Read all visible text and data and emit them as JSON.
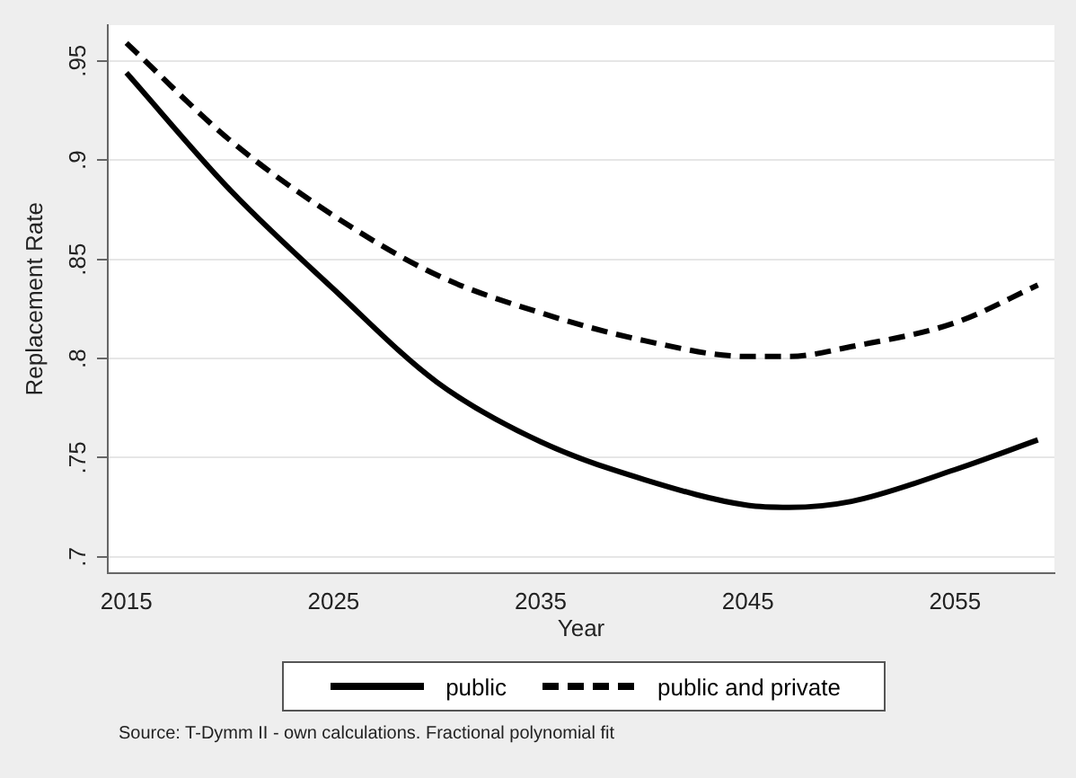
{
  "chart_data": {
    "type": "line",
    "xlabel": "Year",
    "ylabel": "Replacement Rate",
    "x": [
      2015,
      2020,
      2025,
      2030,
      2035,
      2040,
      2045,
      2047,
      2050,
      2055,
      2059
    ],
    "series": [
      {
        "name": "public",
        "color": "#000000",
        "line_style": "solid",
        "values": [
          0.944,
          0.885,
          0.835,
          0.788,
          0.758,
          0.739,
          0.726,
          0.725,
          0.728,
          0.744,
          0.759
        ]
      },
      {
        "name": "public and private",
        "color": "#000000",
        "line_style": "dashed",
        "values": [
          0.959,
          0.91,
          0.872,
          0.842,
          0.823,
          0.809,
          0.801,
          0.801,
          0.806,
          0.818,
          0.837
        ]
      }
    ],
    "xlim": [
      2014.1,
      2059.8
    ],
    "xticks": [
      2015,
      2025,
      2035,
      2045,
      2055
    ],
    "ylim": [
      0.692,
      0.968
    ],
    "yticks": [
      {
        "value": 0.7,
        "label": ".7"
      },
      {
        "value": 0.75,
        "label": ".75"
      },
      {
        "value": 0.8,
        "label": ".8"
      },
      {
        "value": 0.85,
        "label": ".85"
      },
      {
        "value": 0.9,
        "label": ".9"
      },
      {
        "value": 0.95,
        "label": ".95"
      }
    ],
    "grid": "y",
    "legend": "bottom",
    "marker": "none",
    "annotations": [
      "Source: T-Dymm II - own calculations. Fractional polynomial fit"
    ]
  }
}
